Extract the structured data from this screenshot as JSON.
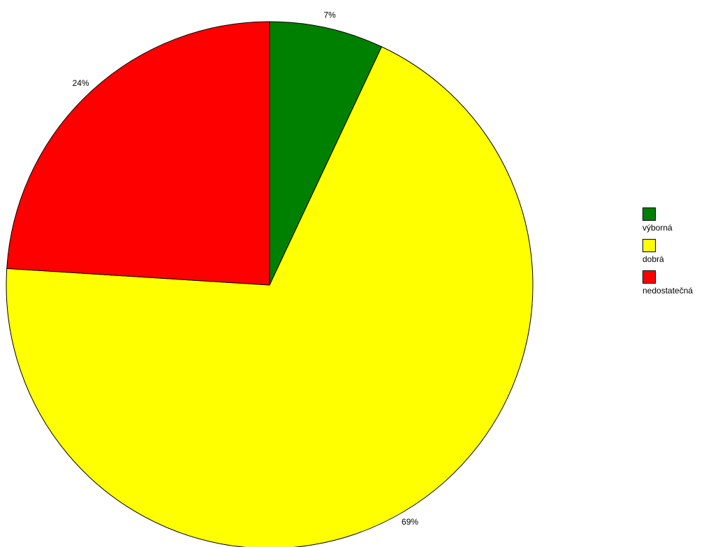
{
  "chart_data": {
    "type": "pie",
    "categories": [
      "výborná",
      "dobrá",
      "nedostatečná"
    ],
    "values": [
      7,
      69,
      24
    ],
    "data_labels": [
      "7%",
      "69%",
      "24%"
    ],
    "colors": [
      "#008000",
      "#ffff00",
      "#ff0000"
    ],
    "start_angle_deg": 0,
    "direction": "clockwise",
    "legend": {
      "placement": "right",
      "items": [
        {
          "label": "výborná",
          "color": "#008000"
        },
        {
          "label": "dobrá",
          "color": "#ffff00"
        },
        {
          "label": "nedostatečná",
          "color": "#ff0000"
        }
      ]
    }
  }
}
